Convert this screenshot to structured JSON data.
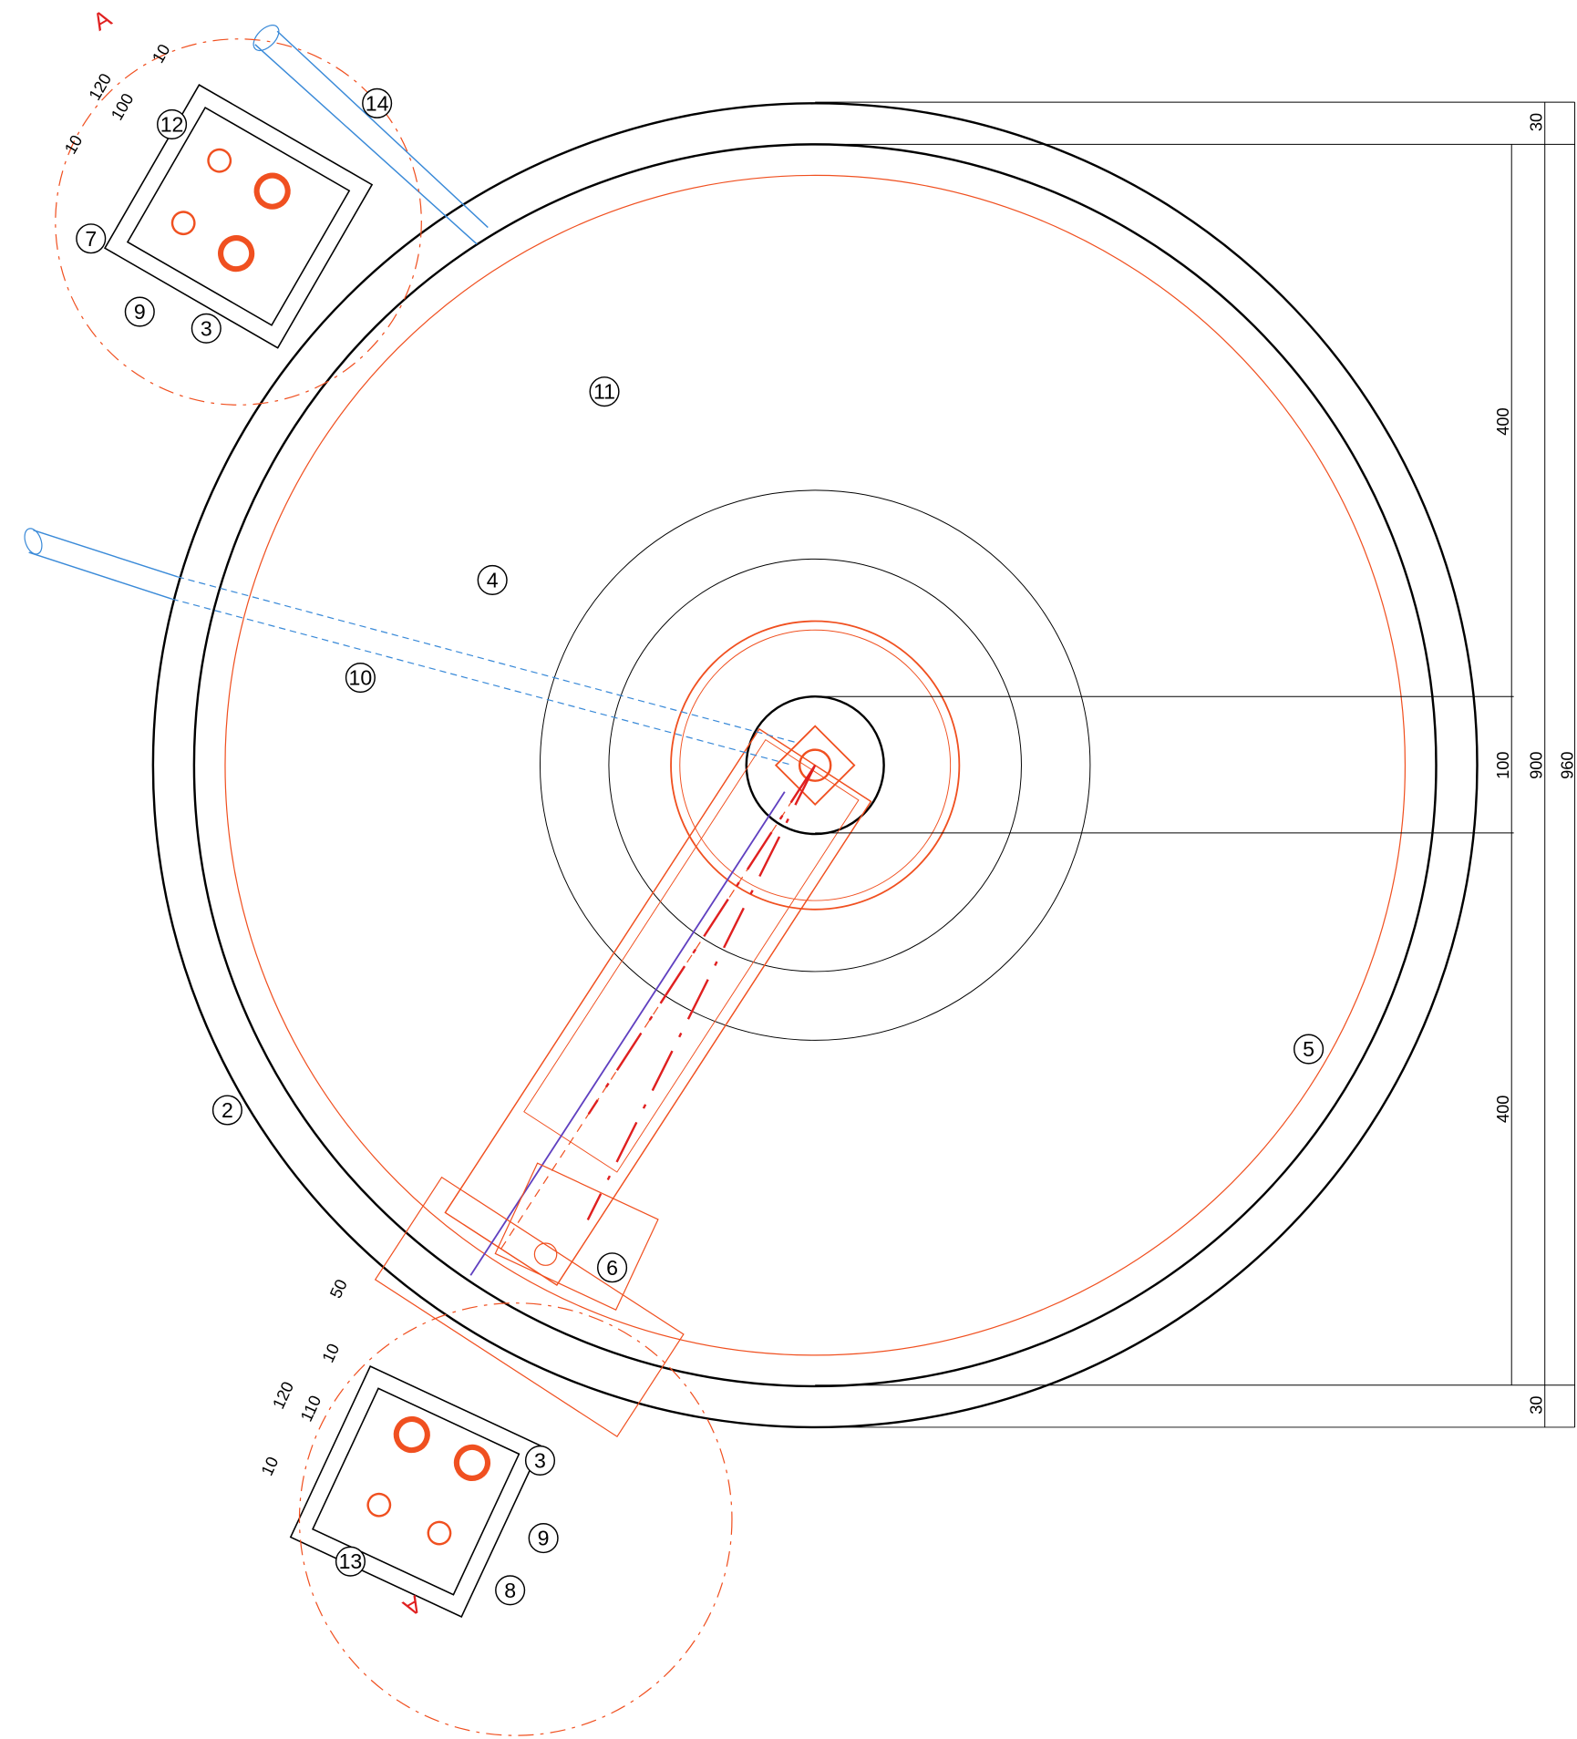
{
  "callouts": [
    "14",
    "12",
    "7",
    "9",
    "3",
    "11",
    "4",
    "10",
    "5",
    "2",
    "6",
    "3",
    "9",
    "13",
    "8"
  ],
  "dimensions": {
    "right": [
      "30",
      "400",
      "100",
      "400",
      "30",
      "900",
      "960"
    ],
    "top_left": [
      "10",
      "120",
      "100",
      "10"
    ],
    "bottom_left": [
      "50",
      "10",
      "120",
      "110",
      "10"
    ]
  },
  "section_marks": [
    "A",
    "A"
  ]
}
